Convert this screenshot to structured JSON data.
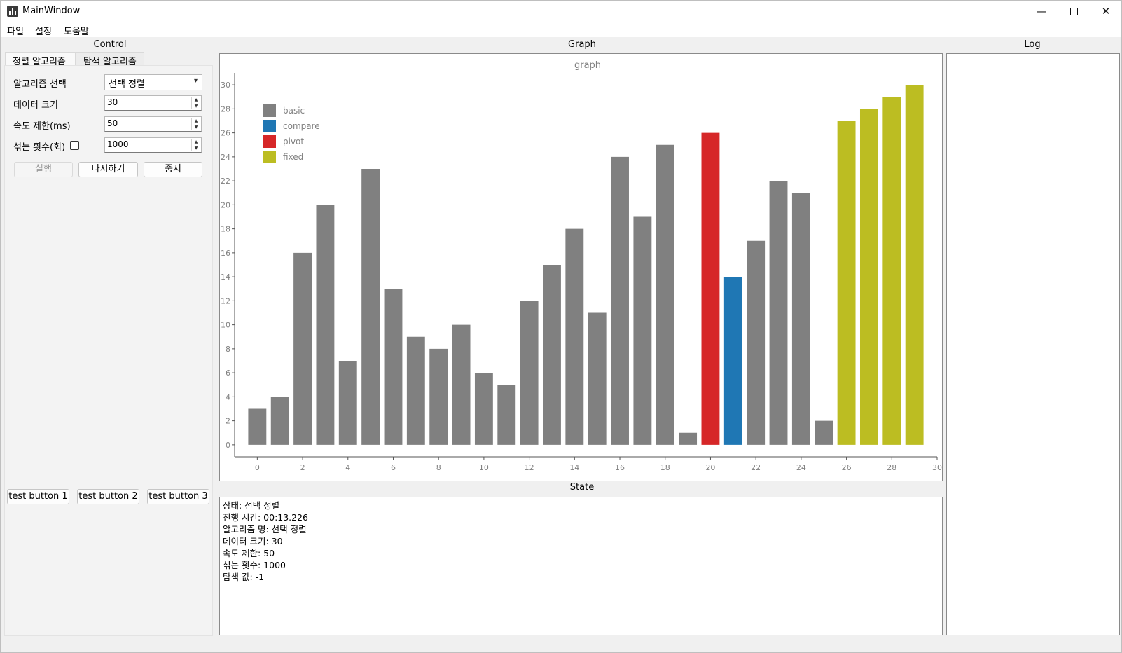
{
  "window": {
    "title": "MainWindow"
  },
  "menu": {
    "file": "파일",
    "settings": "설정",
    "help": "도움말"
  },
  "sections": {
    "control": "Control",
    "graph": "Graph",
    "state": "State",
    "log": "Log"
  },
  "control": {
    "tabs": [
      "정렬 알고리즘",
      "탐색 알고리즘"
    ],
    "algorithm_label": "알고리즘 선택",
    "algorithm_value": "선택 정렬",
    "data_size_label": "데이터 크기",
    "data_size_value": "30",
    "speed_label": "속도 제한(ms)",
    "speed_value": "50",
    "shuffle_label": "섞는 횟수(회)",
    "shuffle_value": "1000",
    "run_button": "실행",
    "restart_button": "다시하기",
    "stop_button": "중지",
    "test_buttons": [
      "test button 1",
      "test button 2",
      "test button 3"
    ]
  },
  "state": {
    "lines": [
      "상태: 선택 정렬",
      "진행 시간: 00:13.226",
      "알고리즘 명: 선택 정렬",
      "데이터 크기: 30",
      "속도 제한: 50",
      "섞는 횟수: 1000",
      "탐색 값: -1"
    ]
  },
  "colors": {
    "basic": "#808080",
    "compare": "#1f77b4",
    "pivot": "#d62728",
    "fixed": "#bcbd22"
  },
  "chart_data": {
    "type": "bar",
    "title": "graph",
    "x": [
      0,
      1,
      2,
      3,
      4,
      5,
      6,
      7,
      8,
      9,
      10,
      11,
      12,
      13,
      14,
      15,
      16,
      17,
      18,
      19,
      20,
      21,
      22,
      23,
      24,
      25,
      26,
      27,
      28,
      29
    ],
    "values": [
      3,
      4,
      16,
      20,
      7,
      23,
      13,
      9,
      8,
      10,
      6,
      5,
      12,
      15,
      18,
      11,
      24,
      19,
      25,
      1,
      26,
      14,
      17,
      22,
      21,
      2,
      27,
      28,
      29,
      30
    ],
    "categories_by_index": [
      "basic",
      "basic",
      "basic",
      "basic",
      "basic",
      "basic",
      "basic",
      "basic",
      "basic",
      "basic",
      "basic",
      "basic",
      "basic",
      "basic",
      "basic",
      "basic",
      "basic",
      "basic",
      "basic",
      "basic",
      "pivot",
      "compare",
      "basic",
      "basic",
      "basic",
      "basic",
      "fixed",
      "fixed",
      "fixed",
      "fixed"
    ],
    "legend": [
      "basic",
      "compare",
      "pivot",
      "fixed"
    ],
    "legend_position": "top-left",
    "xlim": [
      -1,
      30
    ],
    "ylim": [
      -1,
      31
    ],
    "xticks": [
      0,
      2,
      4,
      6,
      8,
      10,
      12,
      14,
      16,
      18,
      20,
      22,
      24,
      26,
      28,
      30
    ],
    "yticks": [
      0,
      2,
      4,
      6,
      8,
      10,
      12,
      14,
      16,
      18,
      20,
      22,
      24,
      26,
      28,
      30
    ],
    "grid": false
  }
}
